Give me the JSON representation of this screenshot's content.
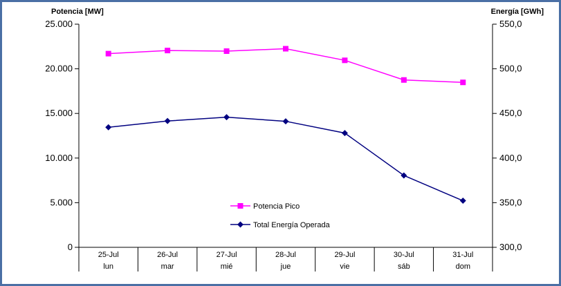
{
  "chart_data": {
    "type": "line",
    "categories": [
      {
        "date": "25-Jul",
        "day": "lun"
      },
      {
        "date": "26-Jul",
        "day": "mar"
      },
      {
        "date": "27-Jul",
        "day": "mié"
      },
      {
        "date": "28-Jul",
        "day": "jue"
      },
      {
        "date": "29-Jul",
        "day": "vie"
      },
      {
        "date": "30-Jul",
        "day": "sáb"
      },
      {
        "date": "31-Jul",
        "day": "dom"
      }
    ],
    "ylabel_left": "Potencia [MW]",
    "ylabel_right": "Energía [GWh]",
    "ylim_left": [
      0,
      25000
    ],
    "ylim_right": [
      300,
      550
    ],
    "yticks_left": [
      "0",
      "5.000",
      "10.000",
      "15.000",
      "20.000",
      "25.000"
    ],
    "yticks_right": [
      "300,0",
      "350,0",
      "400,0",
      "450,0",
      "500,0",
      "550,0"
    ],
    "grid": false,
    "legend_position": "bottom-center (inside plot)",
    "series": [
      {
        "name": "Potencia Pico",
        "axis": "left",
        "color": "#ff00ff",
        "marker": "square",
        "values": [
          21700,
          22050,
          21980,
          22250,
          20950,
          18750,
          18480
        ]
      },
      {
        "name": "Total Energía Operada",
        "axis": "right",
        "color": "#000080",
        "marker": "diamond",
        "values": [
          434.5,
          441.5,
          445.8,
          441.2,
          428.0,
          380.5,
          352.2
        ]
      }
    ]
  }
}
